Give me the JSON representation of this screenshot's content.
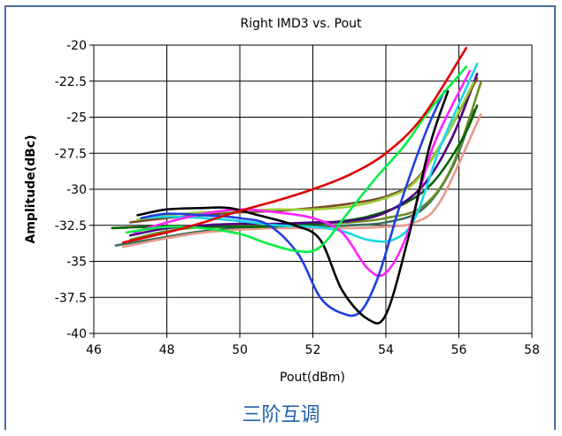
{
  "caption": "三阶互调",
  "chart_data": {
    "type": "line",
    "title": "Right IMD3 vs. Pout",
    "xlabel": "Pout(dBm)",
    "ylabel": "Amplitude(dBc)",
    "xlim": [
      46,
      58
    ],
    "ylim": [
      -40,
      -20
    ],
    "xticks": [
      46,
      48,
      50,
      52,
      54,
      56,
      58
    ],
    "yticks": [
      -20,
      -22.5,
      -25,
      -27.5,
      -30,
      -32.5,
      -35,
      -37.5,
      -40
    ],
    "xtick_labels": [
      "46",
      "48",
      "50",
      "52",
      "54",
      "56",
      "58"
    ],
    "ytick_labels": [
      "-20",
      "-22.5",
      "-25",
      "-27.5",
      "-30",
      "-32.5",
      "-35",
      "-37.5",
      "-40"
    ],
    "grid": true,
    "series": [
      {
        "color": "#e00000",
        "x": [
          46.8,
          48,
          49,
          50,
          51,
          52,
          53,
          54,
          55,
          56.2
        ],
        "y": [
          -33.7,
          -33.0,
          -32.3,
          -31.5,
          -30.8,
          -30.0,
          -29.0,
          -27.5,
          -25.0,
          -20.2
        ]
      },
      {
        "color": "#00ee44",
        "x": [
          46.9,
          48,
          49,
          50,
          50.8,
          51.6,
          52.2,
          53,
          53.8,
          54.5,
          55.2,
          56.2
        ],
        "y": [
          -33.0,
          -32.6,
          -32.7,
          -33.1,
          -33.8,
          -34.3,
          -34.0,
          -31.5,
          -29.0,
          -27.0,
          -24.5,
          -21.5
        ]
      },
      {
        "color": "#000000",
        "x": [
          47.2,
          48,
          49,
          49.7,
          50.5,
          51.5,
          52.2,
          52.8,
          53.5,
          54,
          54.6,
          55.2,
          55.7
        ],
        "y": [
          -31.8,
          -31.4,
          -31.3,
          -31.3,
          -31.8,
          -32.5,
          -33.5,
          -37.0,
          -39.0,
          -38.7,
          -33.5,
          -27.0,
          -23.2
        ]
      },
      {
        "color": "#1f3fe0",
        "x": [
          47.3,
          48,
          49,
          50,
          50.8,
          51.6,
          52.2,
          52.8,
          53.3,
          53.8,
          54.4,
          55.1,
          55.6
        ],
        "y": [
          -32.0,
          -31.7,
          -31.8,
          -32.0,
          -32.5,
          -34.5,
          -37.5,
          -38.6,
          -38.5,
          -36.0,
          -31.0,
          -26.0,
          -23.2
        ]
      },
      {
        "color": "#ff22ff",
        "x": [
          47.1,
          48,
          49,
          50,
          51,
          52,
          52.8,
          53.5,
          54,
          54.6,
          55.3,
          56.3
        ],
        "y": [
          -33.0,
          -32.3,
          -31.7,
          -31.4,
          -31.6,
          -32.0,
          -33.0,
          -35.5,
          -35.8,
          -33.0,
          -27.0,
          -21.8
        ]
      },
      {
        "color": "#18d8e8",
        "x": [
          47.3,
          48,
          49,
          50,
          51,
          52,
          52.8,
          53.5,
          54.2,
          54.8,
          55.5,
          56.5
        ],
        "y": [
          -32.0,
          -31.9,
          -32.0,
          -32.2,
          -32.5,
          -32.6,
          -32.9,
          -33.5,
          -33.5,
          -32.0,
          -27.0,
          -21.3
        ]
      },
      {
        "color": "#9acd32",
        "x": [
          47.2,
          48,
          49,
          50,
          51,
          52,
          53,
          54,
          54.8,
          55.6,
          56.4
        ],
        "y": [
          -32.1,
          -31.8,
          -31.6,
          -31.5,
          -31.4,
          -31.4,
          -31.2,
          -30.6,
          -29.5,
          -26.5,
          -22.6
        ]
      },
      {
        "color": "#7a4a2a",
        "x": [
          47.0,
          48,
          49,
          50,
          51,
          52,
          53,
          54,
          54.8,
          55.6,
          56.5
        ],
        "y": [
          -32.3,
          -32.0,
          -31.8,
          -31.6,
          -31.5,
          -31.3,
          -31.0,
          -30.5,
          -29.4,
          -26.5,
          -22.3
        ]
      },
      {
        "color": "#4b0082",
        "x": [
          47.0,
          48,
          49,
          50,
          51,
          52,
          53,
          54,
          55,
          55.8,
          56.5
        ],
        "y": [
          -33.2,
          -32.7,
          -32.5,
          -32.4,
          -32.4,
          -32.3,
          -32.2,
          -31.6,
          -29.8,
          -26.5,
          -22.0
        ]
      },
      {
        "color": "#006400",
        "x": [
          46.5,
          47.5,
          48.5,
          49.5,
          50.5,
          51.5,
          52.5,
          53.5,
          54.5,
          55.3,
          56.1,
          56.5
        ],
        "y": [
          -32.7,
          -32.6,
          -32.6,
          -32.6,
          -32.6,
          -32.5,
          -32.3,
          -31.9,
          -31.0,
          -29.5,
          -26.5,
          -24.2
        ]
      },
      {
        "color": "#e89a8a",
        "x": [
          46.8,
          48,
          49,
          50,
          51,
          52,
          53,
          54,
          54.8,
          55.5,
          56.6
        ],
        "y": [
          -34.0,
          -33.4,
          -33.0,
          -32.8,
          -32.7,
          -32.7,
          -32.7,
          -32.6,
          -32.3,
          -30.8,
          -24.8
        ]
      },
      {
        "color": "#6b8e23",
        "x": [
          47.0,
          48,
          49,
          50,
          51,
          52,
          53,
          54,
          55,
          55.8,
          56.6
        ],
        "y": [
          -33.5,
          -32.9,
          -32.6,
          -32.5,
          -32.5,
          -32.4,
          -32.3,
          -32.0,
          -31.2,
          -28.5,
          -22.6
        ]
      },
      {
        "color": "#3a6e5a",
        "x": [
          46.6,
          48,
          49,
          50,
          51,
          52,
          53,
          54,
          55,
          55.8,
          56.4
        ],
        "y": [
          -33.9,
          -33.3,
          -32.9,
          -32.7,
          -32.6,
          -32.6,
          -32.5,
          -32.3,
          -31.4,
          -28.6,
          -24.5
        ]
      }
    ]
  }
}
